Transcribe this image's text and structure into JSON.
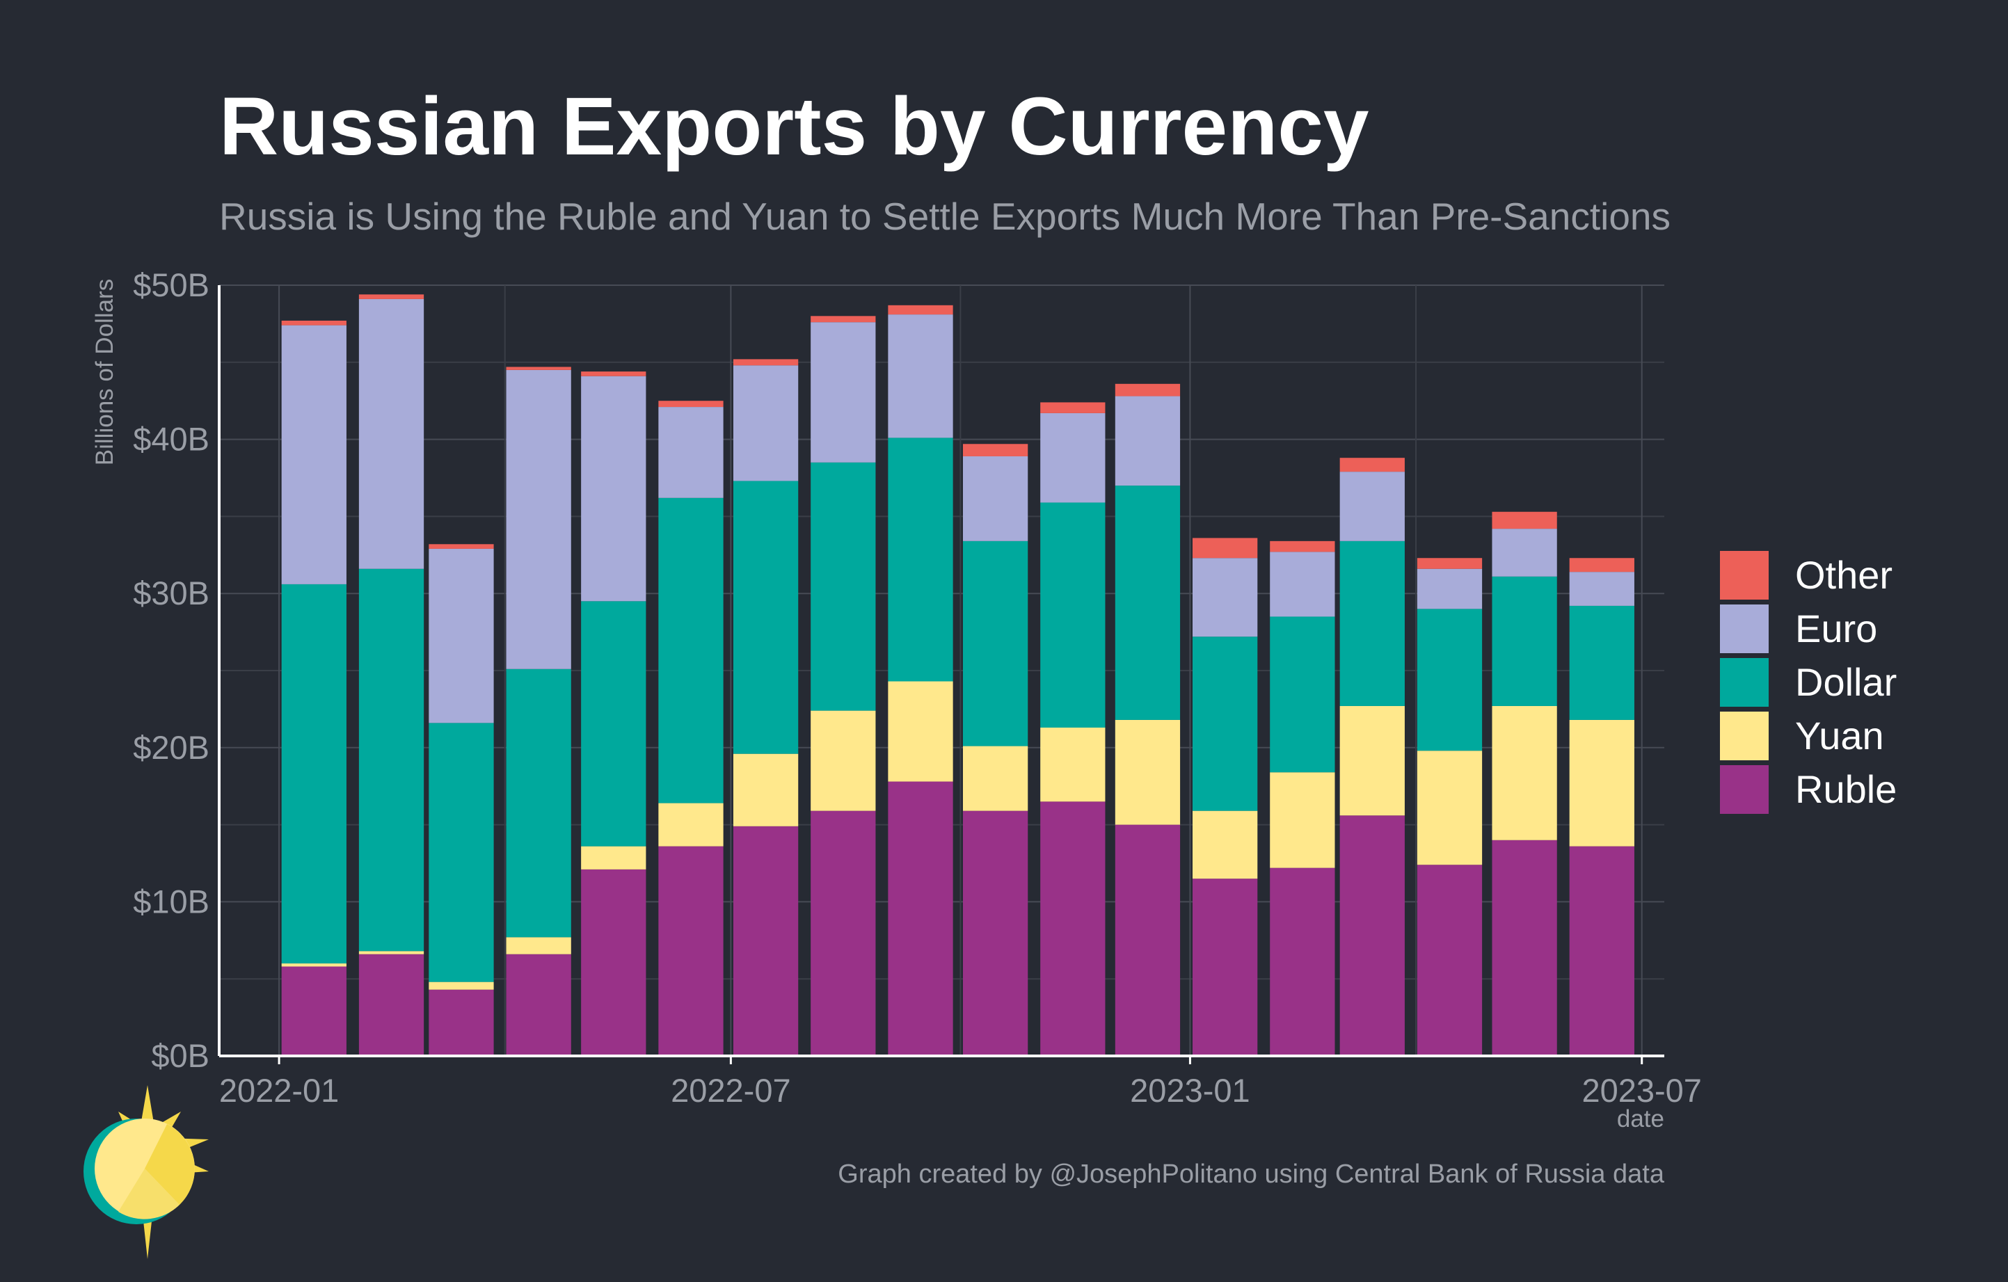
{
  "chart_data": {
    "type": "bar",
    "stacked": true,
    "title": "Russian Exports by Currency",
    "subtitle": "Russia is Using the Ruble and Yuan to Settle Exports Much More Than Pre-Sanctions",
    "xlabel": "date",
    "ylabel": "Billions of Dollars",
    "ylim": [
      0,
      50
    ],
    "y_ticks": [
      "$0B",
      "$10B",
      "$20B",
      "$30B",
      "$40B",
      "$50B"
    ],
    "y_tick_values": [
      0,
      10,
      20,
      30,
      40,
      50
    ],
    "x_ticks": [
      "2022-01",
      "2022-07",
      "2023-01",
      "2023-07"
    ],
    "x_tick_dates": [
      "2022-01-01",
      "2022-07-01",
      "2023-01-01",
      "2023-07-01"
    ],
    "x_range": [
      "2021-12-08",
      "2023-07-10"
    ],
    "grid": true,
    "legend_position": "right",
    "caption": "Graph created by @JosephPolitano using Central Bank of Russia data",
    "x": [
      "2022-01-15",
      "2022-02-15",
      "2022-03-15",
      "2022-04-15",
      "2022-05-15",
      "2022-06-15",
      "2022-07-15",
      "2022-08-15",
      "2022-09-15",
      "2022-10-15",
      "2022-11-15",
      "2022-12-15",
      "2023-01-15",
      "2023-02-15",
      "2023-03-15",
      "2023-04-15",
      "2023-05-15",
      "2023-06-15"
    ],
    "series": [
      {
        "name": "Ruble",
        "color": "#993288",
        "values": [
          5.8,
          6.6,
          4.3,
          6.6,
          12.1,
          13.6,
          14.9,
          15.9,
          17.8,
          15.9,
          16.5,
          15.0,
          11.5,
          12.2,
          15.6,
          12.4,
          14.0,
          13.6
        ]
      },
      {
        "name": "Yuan",
        "color": "#ffe88c",
        "values": [
          0.2,
          0.2,
          0.5,
          1.1,
          1.5,
          2.8,
          4.7,
          6.5,
          6.5,
          4.2,
          4.8,
          6.8,
          4.4,
          6.2,
          7.1,
          7.4,
          8.7,
          8.2
        ]
      },
      {
        "name": "Dollar",
        "color": "#00a99d",
        "values": [
          24.6,
          24.8,
          16.8,
          17.4,
          15.9,
          19.8,
          17.7,
          16.1,
          15.8,
          13.3,
          14.6,
          15.2,
          11.3,
          10.1,
          10.7,
          9.2,
          8.4,
          7.4
        ]
      },
      {
        "name": "Euro",
        "color": "#a8acd9",
        "values": [
          16.8,
          17.5,
          11.3,
          19.4,
          14.6,
          5.9,
          7.5,
          9.1,
          8.0,
          5.5,
          5.8,
          5.8,
          5.1,
          4.2,
          4.5,
          2.6,
          3.1,
          2.2
        ]
      },
      {
        "name": "Other",
        "color": "#ed6058",
        "values": [
          0.3,
          0.3,
          0.3,
          0.2,
          0.3,
          0.4,
          0.4,
          0.4,
          0.6,
          0.8,
          0.7,
          0.8,
          1.3,
          0.7,
          0.9,
          0.7,
          1.1,
          0.9
        ]
      }
    ]
  },
  "colors": {
    "background": "#262a33",
    "ruble": "#993288",
    "yuan": "#ffe88c",
    "dollar": "#00a99d",
    "euro": "#a8acd9",
    "other": "#ed6058"
  },
  "logo": {
    "icon": "sun-logo-icon"
  }
}
